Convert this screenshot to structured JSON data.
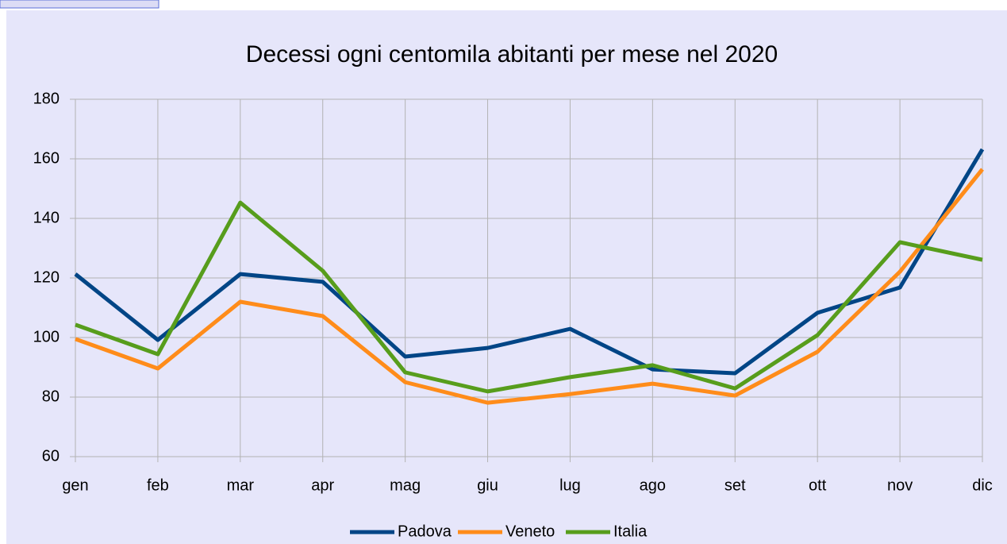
{
  "chart_data": {
    "type": "line",
    "title": "Decessi ogni centomila abitanti per mese nel 2020",
    "categories": [
      "gen",
      "feb",
      "mar",
      "apr",
      "mag",
      "giu",
      "lug",
      "ago",
      "set",
      "ott",
      "nov",
      "dic"
    ],
    "series": [
      {
        "name": "Padova",
        "color": "#004586",
        "values": [
          121.3,
          99.2,
          121.3,
          118.7,
          93.6,
          96.5,
          102.9,
          89.3,
          88,
          108.3,
          116.8,
          163.2
        ]
      },
      {
        "name": "Veneto",
        "color": "#ff8c1a",
        "values": [
          99.5,
          89.6,
          112,
          107.2,
          85,
          78.1,
          81,
          84.5,
          80.5,
          95.2,
          122.1,
          156.5
        ]
      },
      {
        "name": "Italia",
        "color": "#579d1c",
        "values": [
          104.3,
          94.4,
          145.3,
          122.4,
          88.3,
          81.9,
          86.7,
          90.7,
          82.9,
          100.8,
          132,
          126.1
        ]
      }
    ],
    "ylim": [
      60,
      180
    ],
    "yticks": [
      60,
      80,
      100,
      120,
      140,
      160,
      180
    ],
    "grid": true,
    "legend": "bottom"
  }
}
